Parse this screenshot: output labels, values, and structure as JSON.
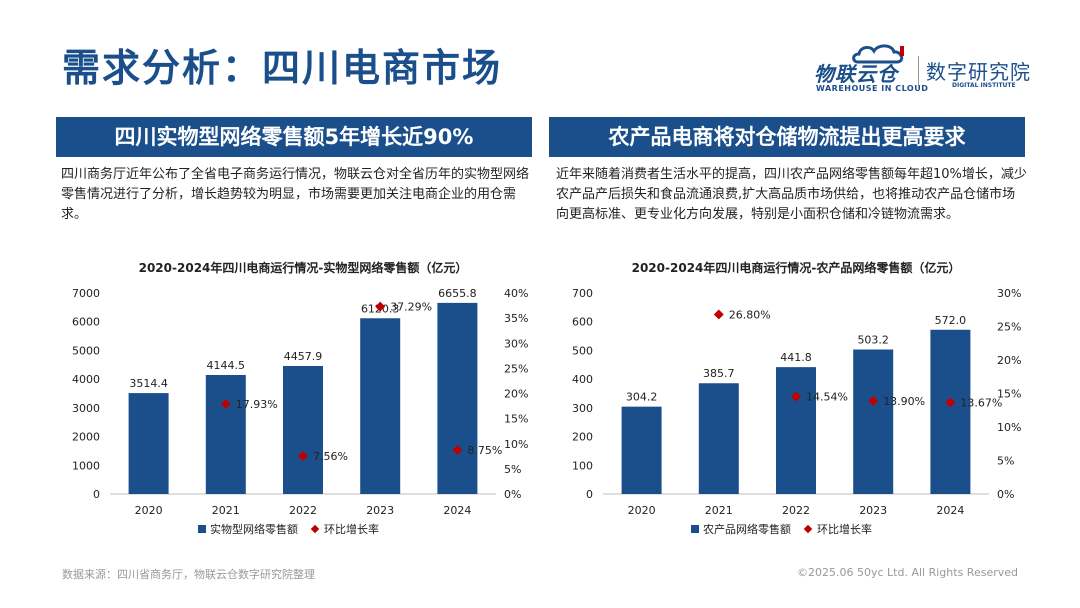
{
  "page": {
    "title": "需求分析：四川电商市场",
    "source": "数据来源：四川省商务厅，物联云仓数字研究院整理",
    "copyright": "©2025.06 50yc Ltd. All Rights Reserved"
  },
  "logo": {
    "name": "物联云仓",
    "name_en": "WAREHOUSE IN CLOUD",
    "institute": "数字研究院",
    "institute_en": "DIGITAL INSTITUTE"
  },
  "panels": [
    {
      "title": "四川实物型网络零售额5年增长近90%",
      "desc": "四川商务厅近年公布了全省电子商务运行情况，物联云仓对全省历年的实物型网络零售情况进行了分析，增长趋势较为明显，市场需要更加关注电商企业的用仓需求。"
    },
    {
      "title": "农产品电商将对仓储物流提出更高要求",
      "desc": "近年来随着消费者生活水平的提高，四川农产品网络零售额每年超10%增长，减少农产品产后损失和食品流通浪费,扩大高品质市场供给，也将推动农产品仓储市场向更高标准、更专业化方向发展，特别是小面积仓储和冷链物流需求。"
    }
  ],
  "colors": {
    "bar": "#1b4f8c",
    "marker": "#c00000",
    "title_bg": "#1b4f8c"
  },
  "chart_data": [
    {
      "type": "bar",
      "title": "2020-2024年四川电商运行情况-实物型网络零售额（亿元）",
      "categories": [
        "2020",
        "2021",
        "2022",
        "2023",
        "2024"
      ],
      "series": [
        {
          "name": "实物型网络零售额",
          "type": "bar",
          "axis": "left",
          "values": [
            3514.4,
            4144.5,
            4457.9,
            6120.3,
            6655.8
          ],
          "labels": [
            "3514.4",
            "4144.5",
            "4457.9",
            "6120.3",
            "6655.8"
          ]
        },
        {
          "name": "环比增长率",
          "type": "scatter",
          "axis": "right",
          "values": [
            null,
            17.93,
            7.56,
            37.29,
            8.75
          ],
          "labels": [
            "",
            "17.93%",
            "7.56%",
            "37.29%",
            "8.75%"
          ]
        }
      ],
      "ylim": [
        0,
        7000
      ],
      "yticks": [
        "0",
        "1000",
        "2000",
        "3000",
        "4000",
        "5000",
        "6000",
        "7000"
      ],
      "y2lim": [
        0,
        40
      ],
      "y2ticks": [
        "0%",
        "5%",
        "10%",
        "15%",
        "20%",
        "25%",
        "30%",
        "35%",
        "40%"
      ],
      "grid": false,
      "legend": "bottom"
    },
    {
      "type": "bar",
      "title": "2020-2024年四川电商运行情况-农产品网络零售额（亿元）",
      "categories": [
        "2020",
        "2021",
        "2022",
        "2023",
        "2024"
      ],
      "series": [
        {
          "name": "农产品网络零售额",
          "type": "bar",
          "axis": "left",
          "values": [
            304.2,
            385.7,
            441.8,
            503.2,
            572.0
          ],
          "labels": [
            "304.2",
            "385.7",
            "441.8",
            "503.2",
            "572.0"
          ]
        },
        {
          "name": "环比增长率",
          "type": "scatter",
          "axis": "right",
          "values": [
            null,
            26.8,
            14.54,
            13.9,
            13.67
          ],
          "labels": [
            "",
            "26.80%",
            "14.54%",
            "13.90%",
            "13.67%"
          ]
        }
      ],
      "ylim": [
        0,
        700
      ],
      "yticks": [
        "0",
        "100",
        "200",
        "300",
        "400",
        "500",
        "600",
        "700"
      ],
      "y2lim": [
        0,
        30
      ],
      "y2ticks": [
        "0%",
        "5%",
        "10%",
        "15%",
        "20%",
        "25%",
        "30%"
      ],
      "grid": false,
      "legend": "bottom"
    }
  ]
}
